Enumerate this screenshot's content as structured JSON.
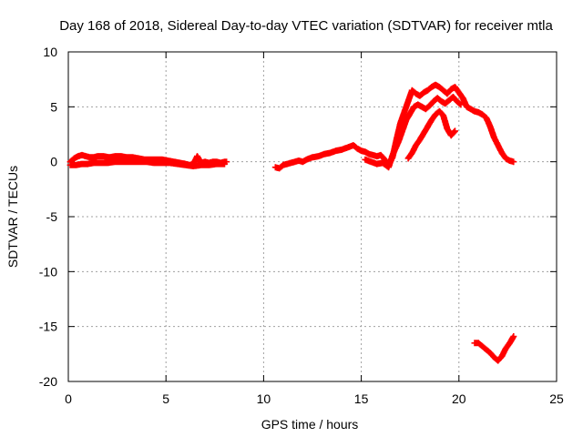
{
  "chart_data": {
    "type": "scatter",
    "title": "Day 168 of 2018, Sidereal Day-to-day VTEC variation (SDTVAR) for receiver mtla",
    "xlabel": "GPS time / hours",
    "ylabel": "SDTVAR / TECUs",
    "xlim": [
      0,
      25
    ],
    "ylim": [
      -20,
      10
    ],
    "x_ticks": [
      "0",
      "5",
      "10",
      "15",
      "20",
      "25"
    ],
    "y_ticks": [
      "10",
      "5",
      "0",
      "-5",
      "-10",
      "-15",
      "-20"
    ],
    "grid": true,
    "marker": "plus",
    "color": "#ff0000",
    "series": [
      {
        "name": "arc-1",
        "x": [
          0.1,
          0.3,
          0.5,
          0.7,
          0.9,
          1.1,
          1.3,
          1.5,
          1.8,
          2.1,
          2.4,
          2.7,
          3.0,
          3.3,
          3.6,
          3.9,
          4.2,
          4.5,
          4.8,
          5.1,
          5.4,
          5.7,
          6.0,
          6.2,
          6.4,
          6.6,
          6.8,
          7.0,
          7.2,
          7.4,
          7.6,
          7.8,
          8.0,
          8.1
        ],
        "y": [
          0.0,
          0.3,
          0.5,
          0.6,
          0.5,
          0.4,
          0.4,
          0.5,
          0.5,
          0.4,
          0.5,
          0.5,
          0.4,
          0.4,
          0.3,
          0.2,
          0.2,
          0.2,
          0.2,
          0.1,
          0.0,
          -0.1,
          -0.2,
          -0.3,
          -0.2,
          0.5,
          -0.1,
          0.0,
          -0.1,
          0.0,
          0.0,
          -0.1,
          0.0,
          0.0
        ]
      },
      {
        "name": "arc-1-lower",
        "x": [
          0.1,
          0.4,
          0.7,
          1.0,
          1.3,
          1.6,
          2.0,
          2.4,
          2.8,
          3.2,
          3.6,
          4.0,
          4.4,
          4.8,
          5.2,
          5.6,
          6.0,
          6.4,
          6.8,
          7.2,
          7.6,
          8.0
        ],
        "y": [
          -0.3,
          -0.3,
          -0.2,
          -0.2,
          -0.1,
          -0.1,
          -0.1,
          0.0,
          0.0,
          0.0,
          0.0,
          0.0,
          -0.1,
          -0.1,
          -0.1,
          -0.2,
          -0.3,
          -0.4,
          -0.3,
          -0.3,
          -0.2,
          -0.2
        ]
      },
      {
        "name": "arc-2",
        "x": [
          10.6,
          10.8,
          11.0,
          11.2,
          11.4,
          11.6,
          11.8,
          12.0,
          12.2,
          12.5,
          12.8,
          13.1,
          13.4,
          13.7,
          14.0,
          14.3,
          14.6,
          14.8,
          15.0,
          15.2,
          15.4,
          15.6,
          15.8,
          16.0,
          16.2,
          16.4,
          16.6,
          16.8,
          17.0,
          17.2,
          17.4,
          17.6,
          17.8,
          18.0,
          18.2,
          18.4,
          18.6,
          18.8,
          19.0,
          19.2,
          19.4,
          19.6,
          19.8,
          20.0,
          20.2,
          20.4,
          20.6,
          20.8,
          21.0,
          21.2,
          21.4,
          21.6,
          21.8,
          22.0,
          22.2,
          22.4,
          22.6,
          22.8
        ],
        "y": [
          -0.5,
          -0.6,
          -0.3,
          -0.2,
          -0.1,
          0.0,
          0.1,
          0.0,
          0.2,
          0.4,
          0.5,
          0.7,
          0.8,
          1.0,
          1.1,
          1.3,
          1.5,
          1.2,
          1.0,
          0.9,
          0.7,
          0.6,
          0.5,
          0.6,
          0.2,
          -0.3,
          0.4,
          2.0,
          3.5,
          4.5,
          5.5,
          6.5,
          6.2,
          6.0,
          6.3,
          6.5,
          6.8,
          7.0,
          6.8,
          6.5,
          6.2,
          6.6,
          6.8,
          6.3,
          5.8,
          5.0,
          4.8,
          4.6,
          4.5,
          4.3,
          4.0,
          3.2,
          2.2,
          1.5,
          0.8,
          0.3,
          0.1,
          0.0
        ]
      },
      {
        "name": "arc-2-inner",
        "x": [
          15.2,
          15.5,
          15.8,
          16.1,
          16.4,
          16.6,
          16.9,
          17.1,
          17.3,
          17.5,
          17.7,
          17.9,
          18.1,
          18.3,
          18.5,
          18.7,
          18.9,
          19.1,
          19.3,
          19.5,
          19.7,
          19.9,
          20.1
        ],
        "y": [
          0.2,
          0.0,
          -0.2,
          -0.1,
          -0.5,
          0.6,
          1.8,
          2.8,
          3.8,
          4.4,
          5.0,
          5.2,
          5.0,
          4.8,
          5.1,
          5.5,
          5.8,
          5.5,
          5.3,
          5.6,
          5.9,
          5.5,
          5.2
        ]
      },
      {
        "name": "arc-2-branch",
        "x": [
          17.4,
          17.6,
          17.8,
          18.0,
          18.2,
          18.4,
          18.6,
          18.8,
          19.0,
          19.2,
          19.4,
          19.6,
          19.8
        ],
        "y": [
          0.3,
          0.8,
          1.5,
          2.0,
          2.6,
          3.2,
          3.8,
          4.3,
          4.6,
          4.2,
          3.0,
          2.4,
          2.8
        ]
      },
      {
        "name": "arc-3",
        "x": [
          20.8,
          21.0,
          21.2,
          21.4,
          21.6,
          21.8,
          22.0,
          22.2,
          22.4,
          22.6,
          22.8
        ],
        "y": [
          -16.5,
          -16.5,
          -16.8,
          -17.1,
          -17.4,
          -17.8,
          -18.1,
          -17.7,
          -17.0,
          -16.5,
          -15.9
        ]
      }
    ]
  }
}
